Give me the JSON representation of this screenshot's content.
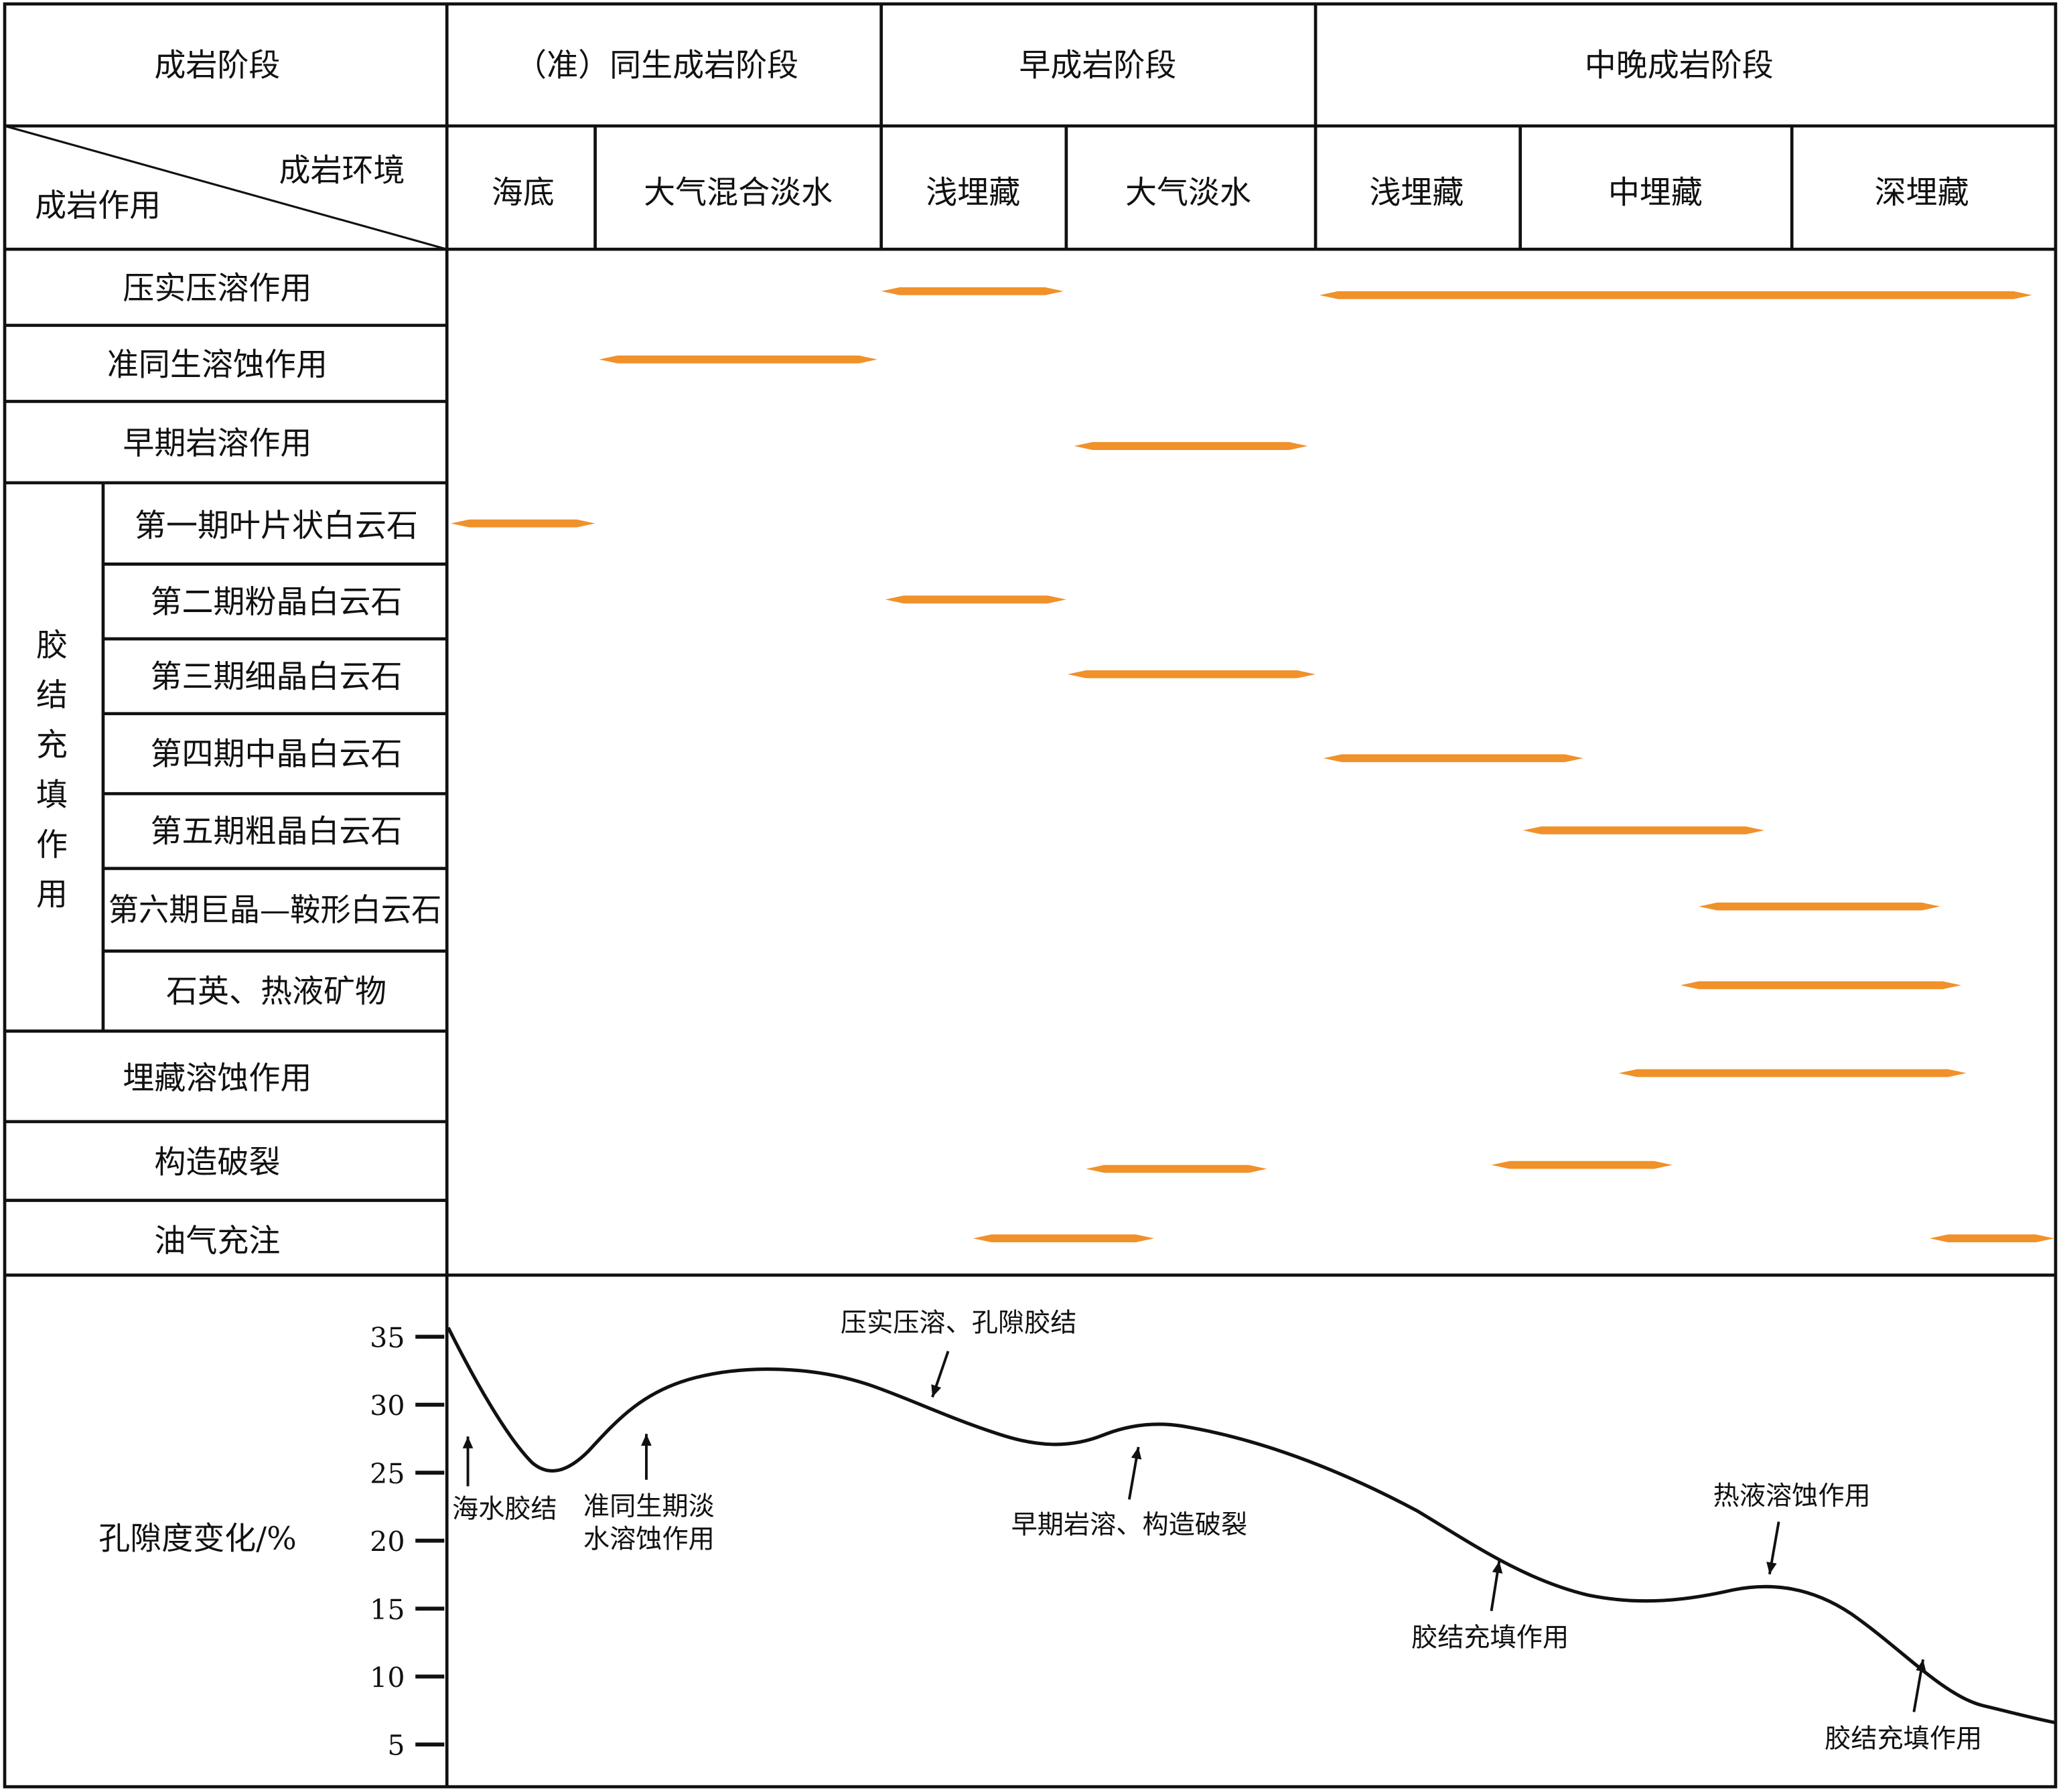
{
  "header": {
    "stage_label": "成岩阶段",
    "stages": [
      "（准）同生成岩阶段",
      "早成岩阶段",
      "中晚成岩阶段"
    ],
    "env_label": "成岩环境",
    "process_label": "成岩作用",
    "environments": [
      "海底",
      "大气混合淡水",
      "浅埋藏",
      "大气淡水",
      "浅埋藏",
      "中埋藏",
      "深埋藏"
    ]
  },
  "rows": {
    "compaction": "压实压溶作用",
    "penecontemporaneous": "准同生溶蚀作用",
    "karst": "早期岩溶作用",
    "cement_group": "胶结充填作用",
    "cement": [
      "第一期叶片状白云石",
      "第二期粉晶白云石",
      "第三期细晶白云石",
      "第四期中晶白云石",
      "第五期粗晶白云石",
      "第六期巨晶—鞍形白云石",
      "石英、热液矿物"
    ],
    "burial_dissolution": "埋藏溶蚀作用",
    "fracturing": "构造破裂",
    "hydrocarbon": "油气充注"
  },
  "porosity": {
    "label": "孔隙度变化/%",
    "ticks": [
      "35",
      "30",
      "25",
      "20",
      "15",
      "10",
      "5"
    ],
    "annotations": {
      "seawater": "海水胶结",
      "pene_1": "准同生期淡",
      "pene_2": "水溶蚀作用",
      "compaction": "压实压溶、孔隙胶结",
      "karst": "早期岩溶、构造破裂",
      "cement1": "胶结充填作用",
      "hydrothermal": "热液溶蚀作用",
      "cement2": "胶结充填作用"
    }
  },
  "colors": {
    "bar": "#f0912a",
    "line": "#111111"
  }
}
